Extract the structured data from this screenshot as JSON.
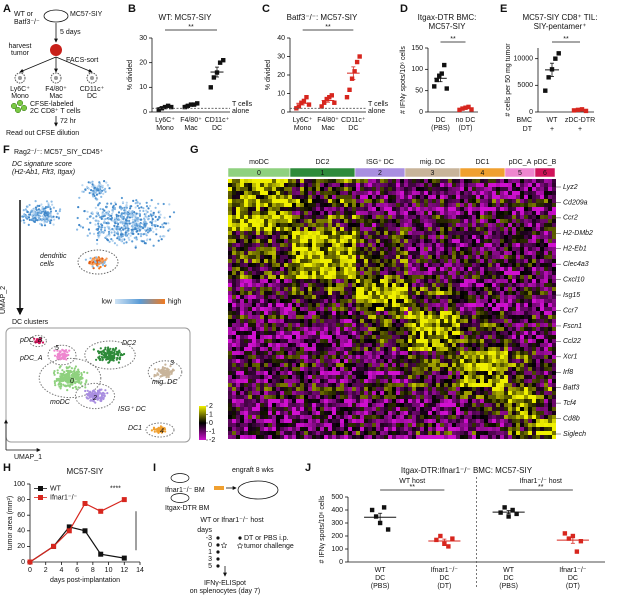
{
  "panel_labels": [
    "A",
    "B",
    "C",
    "D",
    "E",
    "F",
    "G",
    "H",
    "I",
    "J"
  ],
  "schematic_A": {
    "mouse": [
      "WT or",
      "Batf3⁻/⁻"
    ],
    "tumor": "MC57-SIY",
    "step1": "5 days",
    "step2": [
      "harvest",
      "tumor"
    ],
    "step3": "FACS-sort",
    "populations": [
      [
        "Ly6C⁺",
        "Mono"
      ],
      [
        "F4/80⁺",
        "Mac"
      ],
      [
        "CD11c⁺",
        "DC"
      ]
    ],
    "tcells": [
      "CFSE-labeled",
      "2C CD8⁺ T cells"
    ],
    "time": "72 hr",
    "readout": "Read out CFSE dilution"
  },
  "chart_data": [
    {
      "type": "dot_strip",
      "title": "WT: MC57-SIY",
      "ylabel": "% divided",
      "categories": [
        [
          "Ly6C⁺",
          "Mono"
        ],
        [
          "F4/80⁺",
          "Mac"
        ],
        [
          "CD11c⁺",
          "DC"
        ]
      ],
      "colors": [
        "#111111",
        "#111111",
        "#111111"
      ],
      "values": [
        [
          1,
          1.5,
          2,
          2.5,
          2
        ],
        [
          2,
          2.5,
          3,
          3,
          3.5
        ],
        [
          10,
          14,
          16,
          20,
          21
        ]
      ],
      "means": [
        1.8,
        2.8,
        16.2
      ],
      "sems": [
        0.3,
        0.3,
        2
      ],
      "ylim": [
        0,
        30
      ],
      "yticks": [
        0,
        10,
        20,
        30
      ],
      "baseline": {
        "value": 1.5,
        "label": [
          "T cells",
          "alone"
        ]
      },
      "significance": [
        "**"
      ]
    },
    {
      "type": "dot_strip",
      "title": "Batf3⁻/⁻: MC57-SIY",
      "ylabel": "% divided",
      "categories": [
        [
          "Ly6C⁺",
          "Mono"
        ],
        [
          "F4/80⁺",
          "Mac"
        ],
        [
          "CD11c⁺",
          "DC"
        ]
      ],
      "colors": [
        "#d7261e",
        "#d7261e",
        "#d7261e"
      ],
      "values": [
        [
          2,
          3,
          5,
          6,
          8,
          4
        ],
        [
          3,
          5,
          7,
          8,
          9,
          5
        ],
        [
          8,
          12,
          18,
          22,
          27,
          30
        ]
      ],
      "means": [
        4.7,
        6.2,
        21
      ],
      "sems": [
        0.9,
        0.9,
        3.4
      ],
      "ylim": [
        0,
        40
      ],
      "yticks": [
        0,
        10,
        20,
        30,
        40
      ],
      "baseline": {
        "value": 2,
        "label": [
          "T cells",
          "alone"
        ]
      },
      "significance": [
        "**"
      ]
    },
    {
      "type": "dot_strip",
      "title": [
        "Itgax-DTR BMC:",
        "MC57-SIY"
      ],
      "ylabel": "# IFNγ spots/10⁶ cells",
      "categories": [
        [
          "DC",
          "(PBS)"
        ],
        [
          "no DC",
          "(DT)"
        ]
      ],
      "colors": [
        "#111111",
        "#d7261e"
      ],
      "values": [
        [
          60,
          75,
          85,
          90,
          110,
          55
        ],
        [
          5,
          8,
          10,
          12,
          6
        ]
      ],
      "means": [
        79,
        8
      ],
      "sems": [
        8,
        1.3
      ],
      "ylim": [
        0,
        150
      ],
      "yticks": [
        0,
        50,
        100,
        150
      ],
      "significance": [
        "**"
      ]
    },
    {
      "type": "dot_strip",
      "title": [
        "MC57-SIY CD8⁺ TIL:",
        "SIY-pentamer⁺"
      ],
      "ylabel": "# cells per 50 mg tumor",
      "categories": [
        [
          "WT"
        ],
        [
          "zDC-DTR"
        ]
      ],
      "row_labels": [
        "BMC",
        "DT"
      ],
      "dt": [
        "+",
        "+"
      ],
      "colors": [
        "#111111",
        "#d7261e"
      ],
      "values": [
        [
          4000,
          6500,
          8000,
          10000,
          11000
        ],
        [
          300,
          400,
          500,
          200
        ]
      ],
      "means": [
        7900,
        350
      ],
      "sems": [
        1250,
        65
      ],
      "ylim": [
        0,
        12000
      ],
      "yticks": [
        0,
        5000,
        10000
      ],
      "significance": [
        "**"
      ]
    },
    {
      "type": "line",
      "title": "MC57-SIY",
      "ylabel": "tumor area (mm²)",
      "xlabel": "days post-implantation",
      "x": [
        0,
        3,
        5,
        7,
        9,
        12
      ],
      "series": [
        {
          "name": "WT",
          "color": "#111111",
          "values": [
            0,
            20,
            45,
            40,
            10,
            5
          ]
        },
        {
          "name": "Ifnar1⁻/⁻",
          "color": "#d7261e",
          "values": [
            0,
            20,
            40,
            75,
            65,
            80
          ]
        }
      ],
      "xlim": [
        0,
        14
      ],
      "xticks": [
        0,
        2,
        4,
        6,
        8,
        10,
        12,
        14
      ],
      "ylim": [
        0,
        100
      ],
      "yticks": [
        0,
        20,
        40,
        60,
        80,
        100
      ],
      "significance": [
        "****"
      ]
    },
    {
      "type": "dot_strip",
      "title": "Itgax-DTR:Ifnar1⁻/⁻ BMC: MC57-SIY",
      "ylabel": "# IFNγ spots/10⁶ cells",
      "groups": [
        "WT host",
        "Ifnar1⁻/⁻ host"
      ],
      "categories": [
        [
          "WT",
          "DC",
          "(PBS)"
        ],
        [
          "Ifnar1⁻/⁻",
          "DC",
          "(DT)"
        ],
        [
          "WT",
          "DC",
          "(PBS)"
        ],
        [
          "Ifnar1⁻/⁻",
          "DC",
          "(DT)"
        ]
      ],
      "colors": [
        "#111111",
        "#d7261e",
        "#111111",
        "#d7261e"
      ],
      "values": [
        [
          400,
          350,
          300,
          420,
          250
        ],
        [
          170,
          200,
          140,
          120,
          180
        ],
        [
          380,
          420,
          350,
          400,
          370
        ],
        [
          220,
          180,
          200,
          80,
          160
        ]
      ],
      "means": [
        344,
        162,
        384,
        168
      ],
      "sems": [
        31,
        14,
        12,
        24
      ],
      "ylim": [
        0,
        500
      ],
      "yticks": [
        0,
        100,
        200,
        300,
        400,
        500
      ],
      "significance": [
        "**",
        "**"
      ]
    }
  ],
  "umap_F": {
    "title": "Rag2⁻/⁻: MC57_SIY_CD45⁺",
    "score_title": "DC signature score",
    "score_genes": "(H2-Ab1, Flt3, Itgax)",
    "dc_label": [
      "dendritic",
      "cells"
    ],
    "low": "low",
    "high": "high",
    "clusters_title": "DC clusters",
    "cluster_labels": [
      "pDC_B",
      "5",
      "pDC_A",
      "DC2",
      "3",
      "mig. DC",
      "0",
      "2",
      "moDC",
      "ISG⁺ DC",
      "DC1",
      "4"
    ],
    "xlabel": "UMAP_1",
    "ylabel": "UMAP_2"
  },
  "heatmap_G": {
    "clusters": [
      {
        "name": "moDC",
        "id": "0",
        "color": "#8fd17f"
      },
      {
        "name": "DC2",
        "id": "1",
        "color": "#2e8b3a"
      },
      {
        "name": "ISG⁺ DC",
        "id": "2",
        "color": "#a98ee0"
      },
      {
        "name": "mig. DC",
        "id": "3",
        "color": "#c8b49a"
      },
      {
        "name": "DC1",
        "id": "4",
        "color": "#f0a030"
      },
      {
        "name": "pDC_A",
        "id": "5",
        "color": "#ee86cf"
      },
      {
        "name": "pDC_B",
        "id": "6",
        "color": "#d0145a"
      }
    ],
    "genes": [
      "Lyz2",
      "Cd209a",
      "Ccr2",
      "H2-DMb2",
      "H2-Eb1",
      "Clec4a3",
      "Cxcl10",
      "Isg15",
      "Ccr7",
      "Fscn1",
      "Ccl22",
      "Xcr1",
      "Irf8",
      "Batf3",
      "Tcf4",
      "Cd8b",
      "Siglech"
    ],
    "colorbar_lim": [
      -2,
      2
    ],
    "colorbar_ticks": [
      2,
      1,
      0,
      -1,
      -2
    ]
  },
  "schematic_I": {
    "engraft": "engraft 8 wks",
    "donor1": "Ifnar1⁻/⁻ BM",
    "donor2": "Itgax-DTR BM",
    "host": "WT or Ifnar1⁻/⁻ host",
    "days_title": "days",
    "days": [
      "-3",
      "0",
      "1",
      "3",
      "5"
    ],
    "legend": [
      "DT or PBS i.p.",
      "tumor challenge"
    ],
    "readout": [
      "IFNγ-ELISpot",
      "on splenocytes (day 7)"
    ]
  }
}
